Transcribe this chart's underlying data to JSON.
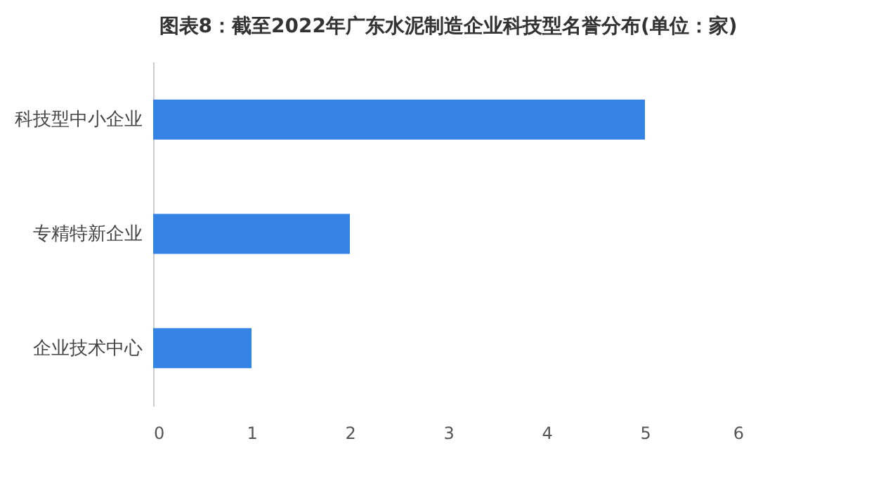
{
  "chart_data": {
    "type": "bar",
    "orientation": "horizontal",
    "title": "图表8：截至2022年广东水泥制造企业科技型名誉分布(单位：家)",
    "categories": [
      "科技型中小企业",
      "专精特新企业",
      "企业技术中心"
    ],
    "values": [
      5,
      2,
      1
    ],
    "color": "#3583e5",
    "xlim": [
      0,
      6
    ],
    "xticks": [
      0,
      1,
      2,
      3,
      4,
      5,
      6
    ],
    "grid": false
  }
}
